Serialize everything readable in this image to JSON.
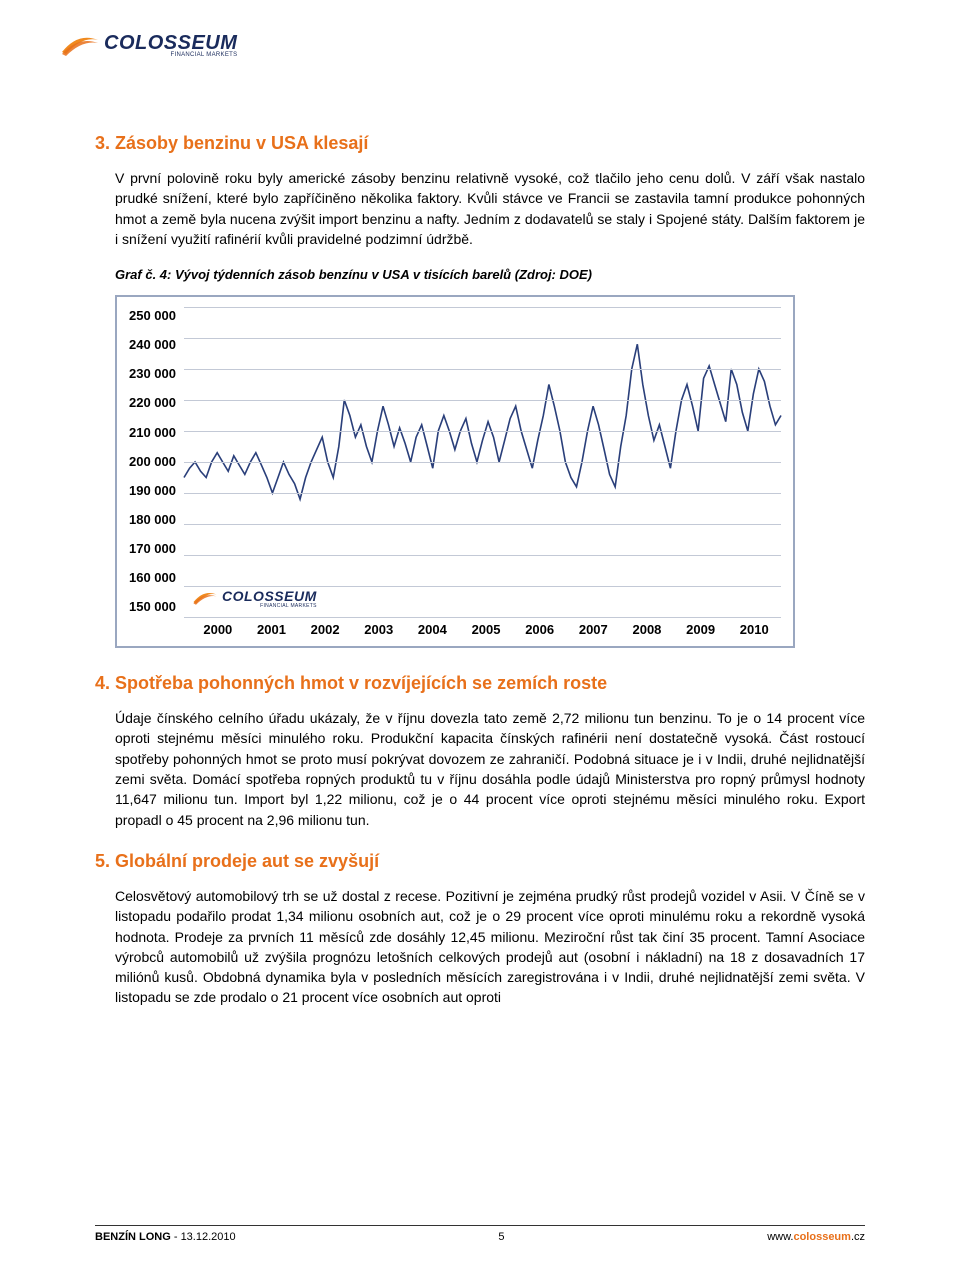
{
  "logo": {
    "main": "COLOSSEUM",
    "sub": "FINANCIAL MARKETS"
  },
  "section3": {
    "heading": "3. Zásoby benzinu v USA klesají",
    "paragraph": "V první polovině roku byly americké zásoby benzinu relativně vysoké, což tlačilo jeho cenu dolů. V září však nastalo prudké snížení, které bylo zapříčiněno několika faktory. Kvůli stávce ve Francii se zastavila tamní produkce pohonných hmot a země byla nucena zvýšit import benzinu a nafty. Jedním z dodavatelů se staly i Spojené státy. Dalším faktorem je i snížení využití rafinérií kvůli pravidelné podzimní údržbě.",
    "caption": "Graf č. 4: Vývoj týdenních zásob benzínu v USA v tisících barelů (Zdroj: DOE)"
  },
  "chart": {
    "type": "line",
    "ylim": [
      150000,
      250000
    ],
    "ytick_step": 10000,
    "ylabels": [
      "250 000",
      "240 000",
      "230 000",
      "220 000",
      "210 000",
      "200 000",
      "190 000",
      "180 000",
      "170 000",
      "160 000",
      "150 000"
    ],
    "xlabels": [
      "2000",
      "2001",
      "2002",
      "2003",
      "2004",
      "2005",
      "2006",
      "2007",
      "2008",
      "2009",
      "2010"
    ],
    "line_color": "#2a3f7a",
    "line_width": 1.6,
    "grid_color": "#c3c9d6",
    "border_color": "#9aa7c0",
    "background_color": "#ffffff",
    "tick_fontsize": 13,
    "tick_fontweight": "bold",
    "series": [
      [
        0.0,
        195000
      ],
      [
        0.5,
        198000
      ],
      [
        1.0,
        200000
      ],
      [
        1.5,
        197000
      ],
      [
        2.0,
        195000
      ],
      [
        2.5,
        200000
      ],
      [
        3.0,
        203000
      ],
      [
        3.5,
        200000
      ],
      [
        4.0,
        197000
      ],
      [
        4.5,
        202000
      ],
      [
        5.0,
        199000
      ],
      [
        5.5,
        196000
      ],
      [
        6.0,
        200000
      ],
      [
        6.5,
        203000
      ],
      [
        7.0,
        199000
      ],
      [
        7.5,
        195000
      ],
      [
        8.0,
        190000
      ],
      [
        8.5,
        195000
      ],
      [
        9.0,
        200000
      ],
      [
        9.5,
        196000
      ],
      [
        10.0,
        193000
      ],
      [
        10.5,
        188000
      ],
      [
        11.0,
        195000
      ],
      [
        11.5,
        200000
      ],
      [
        12.0,
        204000
      ],
      [
        12.5,
        208000
      ],
      [
        13.0,
        200000
      ],
      [
        13.5,
        195000
      ],
      [
        14.0,
        205000
      ],
      [
        14.5,
        220000
      ],
      [
        15.0,
        215000
      ],
      [
        15.5,
        208000
      ],
      [
        16.0,
        212000
      ],
      [
        16.5,
        205000
      ],
      [
        17.0,
        200000
      ],
      [
        17.5,
        210000
      ],
      [
        18.0,
        218000
      ],
      [
        18.5,
        212000
      ],
      [
        19.0,
        205000
      ],
      [
        19.5,
        211000
      ],
      [
        20.0,
        206000
      ],
      [
        20.5,
        200000
      ],
      [
        21.0,
        208000
      ],
      [
        21.5,
        212000
      ],
      [
        22.0,
        205000
      ],
      [
        22.5,
        198000
      ],
      [
        23.0,
        210000
      ],
      [
        23.5,
        215000
      ],
      [
        24.0,
        210000
      ],
      [
        24.5,
        204000
      ],
      [
        25.0,
        210000
      ],
      [
        25.5,
        214000
      ],
      [
        26.0,
        206000
      ],
      [
        26.5,
        200000
      ],
      [
        27.0,
        207000
      ],
      [
        27.5,
        213000
      ],
      [
        28.0,
        208000
      ],
      [
        28.5,
        200000
      ],
      [
        29.0,
        207000
      ],
      [
        29.5,
        214000
      ],
      [
        30.0,
        218000
      ],
      [
        30.5,
        210000
      ],
      [
        31.0,
        204000
      ],
      [
        31.5,
        198000
      ],
      [
        32.0,
        207000
      ],
      [
        32.5,
        215000
      ],
      [
        33.0,
        225000
      ],
      [
        33.5,
        218000
      ],
      [
        34.0,
        210000
      ],
      [
        34.5,
        200000
      ],
      [
        35.0,
        195000
      ],
      [
        35.5,
        192000
      ],
      [
        36.0,
        200000
      ],
      [
        36.5,
        210000
      ],
      [
        37.0,
        218000
      ],
      [
        37.5,
        212000
      ],
      [
        38.0,
        204000
      ],
      [
        38.5,
        196000
      ],
      [
        39.0,
        192000
      ],
      [
        39.5,
        205000
      ],
      [
        40.0,
        215000
      ],
      [
        40.5,
        230000
      ],
      [
        41.0,
        238000
      ],
      [
        41.5,
        225000
      ],
      [
        42.0,
        215000
      ],
      [
        42.5,
        207000
      ],
      [
        43.0,
        212000
      ],
      [
        43.5,
        205000
      ],
      [
        44.0,
        198000
      ],
      [
        44.5,
        210000
      ],
      [
        45.0,
        220000
      ],
      [
        45.5,
        225000
      ],
      [
        46.0,
        218000
      ],
      [
        46.5,
        210000
      ],
      [
        47.0,
        227000
      ],
      [
        47.5,
        231000
      ],
      [
        48.0,
        225000
      ],
      [
        48.5,
        219000
      ],
      [
        49.0,
        213000
      ],
      [
        49.5,
        230000
      ],
      [
        50.0,
        225000
      ],
      [
        50.5,
        216000
      ],
      [
        51.0,
        210000
      ],
      [
        51.5,
        222000
      ],
      [
        52.0,
        230000
      ],
      [
        52.5,
        226000
      ],
      [
        53.0,
        218000
      ],
      [
        53.5,
        212000
      ],
      [
        54.0,
        215000
      ]
    ]
  },
  "section4": {
    "heading": "4. Spotřeba pohonných hmot v rozvíjejících se zemích roste",
    "paragraph": "Údaje čínského celního úřadu ukázaly, že v říjnu dovezla tato země 2,72 milionu tun benzinu. To je o 14 procent více oproti stejnému měsíci minulého roku. Produkční kapacita čínských rafinérii není dostatečně vysoká. Část rostoucí spotřeby pohonných hmot se proto musí pokrývat dovozem ze zahraničí. Podobná situace je i v Indii, druhé nejlidnatější zemi světa. Domácí spotřeba ropných produktů tu v říjnu dosáhla podle údajů Ministerstva pro ropný průmysl hodnoty 11,647 milionu tun. Import byl 1,22 milionu, což je o 44 procent více oproti stejnému měsíci minulého roku. Export propadl o 45 procent na 2,96 milionu tun."
  },
  "section5": {
    "heading": "5. Globální prodeje aut se zvyšují",
    "paragraph": "Celosvětový automobilový trh se už dostal z recese. Pozitivní je zejména prudký růst prodejů vozidel v Asii. V Číně se v listopadu podařilo prodat 1,34 milionu osobních aut, což je o 29 procent více oproti minulému roku a rekordně vysoká hodnota. Prodeje za prvních 11 měsíců zde dosáhly 12,45 milionu. Meziroční růst tak činí 35 procent. Tamní Asociace výrobců automobilů už zvýšila prognózu letošních celkových prodejů aut (osobní i nákladní) na 18 z dosavadních 17 miliónů kusů. Obdobná dynamika byla v posledních měsících zaregistrována i v Indii, druhé nejlidnatější zemi světa. V listopadu se zde prodalo o 21 procent více osobních aut oproti"
  },
  "footer": {
    "doc_title": "BENZÍN LONG",
    "dash": " - ",
    "date": "13.12.2010",
    "page": "5",
    "url_prefix": "www.",
    "url_accent": "colosseum",
    "url_suffix": ".cz"
  }
}
